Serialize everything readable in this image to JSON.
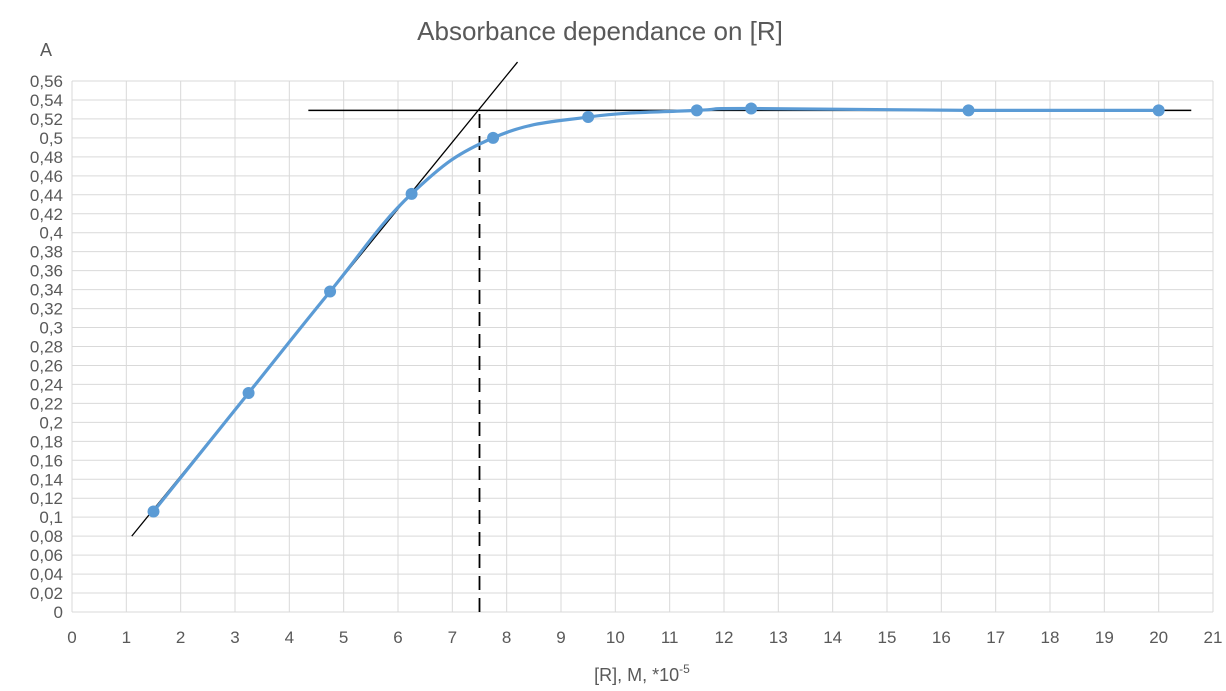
{
  "chart_data": {
    "type": "line",
    "title": "Absorbance dependance on [R]",
    "ylabel": "A",
    "xlabel": "[R], M, *10",
    "xlabel_exponent": "-5",
    "xlim": [
      0,
      21
    ],
    "ylim": [
      0,
      0.56
    ],
    "x_ticks": [
      0,
      1,
      2,
      3,
      4,
      5,
      6,
      7,
      8,
      9,
      10,
      11,
      12,
      13,
      14,
      15,
      16,
      17,
      18,
      19,
      20,
      21
    ],
    "x_tick_labels": [
      "0",
      "1",
      "2",
      "3",
      "4",
      "5",
      "6",
      "7",
      "8",
      "9",
      "10",
      "11",
      "12",
      "13",
      "14",
      "15",
      "16",
      "17",
      "18",
      "19",
      "20",
      "21"
    ],
    "y_ticks": [
      0,
      0.02,
      0.04,
      0.06,
      0.08,
      0.1,
      0.12,
      0.14,
      0.16,
      0.18,
      0.2,
      0.22,
      0.24,
      0.26,
      0.28,
      0.3,
      0.32,
      0.34,
      0.36,
      0.38,
      0.4,
      0.42,
      0.44,
      0.46,
      0.48,
      0.5,
      0.52,
      0.54,
      0.56
    ],
    "y_tick_labels": [
      "0",
      "0,02",
      "0,04",
      "0,06",
      "0,08",
      "0,1",
      "0,12",
      "0,14",
      "0,16",
      "0,18",
      "0,2",
      "0,22",
      "0,24",
      "0,26",
      "0,28",
      "0,3",
      "0,32",
      "0,34",
      "0,36",
      "0,38",
      "0,4",
      "0,42",
      "0,44",
      "0,46",
      "0,48",
      "0,5",
      "0,52",
      "0,54",
      "0,56"
    ],
    "grid": true,
    "series": [
      {
        "color": "#5b9bd5",
        "x": [
          1.5,
          3.25,
          4.75,
          6.25,
          7.75,
          9.5,
          11.5,
          12.5,
          16.5,
          20
        ],
        "y": [
          0.106,
          0.231,
          0.338,
          0.441,
          0.5,
          0.522,
          0.529,
          0.531,
          0.529,
          0.529
        ]
      }
    ],
    "annotations": {
      "tangent_line": {
        "color": "#000000",
        "from": [
          1.1,
          0.08
        ],
        "to": [
          8.2,
          0.58
        ]
      },
      "plateau_line": {
        "color": "#000000",
        "from": [
          4.35,
          0.529
        ],
        "to": [
          20.6,
          0.529
        ]
      },
      "intersection_dashed": {
        "color": "#000000",
        "x": 7.5,
        "y_from": 0,
        "y_to": 0.529
      }
    }
  }
}
